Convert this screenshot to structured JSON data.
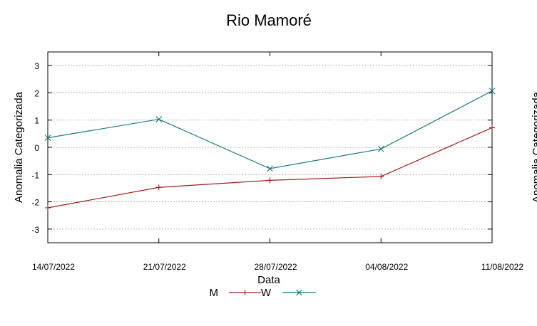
{
  "chart_data": {
    "type": "line",
    "title": "Rio Mamoré",
    "xlabel": "Data",
    "ylabel": "Anomalia Categorizada",
    "right_ylabel": "Anomalia Categorizada",
    "categories": [
      "14/07/2022",
      "21/07/2022",
      "28/07/2022",
      "04/08/2022",
      "11/08/2022"
    ],
    "ylim": [
      -3.5,
      3.5
    ],
    "yticks": [
      -3,
      -2,
      -1,
      0,
      1,
      2,
      3
    ],
    "grid": true,
    "legend_position": "bottom-center",
    "series": [
      {
        "name": "M",
        "color": "#a01a1a",
        "marker": "plus",
        "values": [
          -2.22,
          -1.47,
          -1.21,
          -1.07,
          0.72
        ]
      },
      {
        "name": "W",
        "color": "#1a7a7e",
        "marker": "cross",
        "values": [
          0.35,
          1.03,
          -0.78,
          -0.06,
          2.07
        ]
      }
    ]
  }
}
